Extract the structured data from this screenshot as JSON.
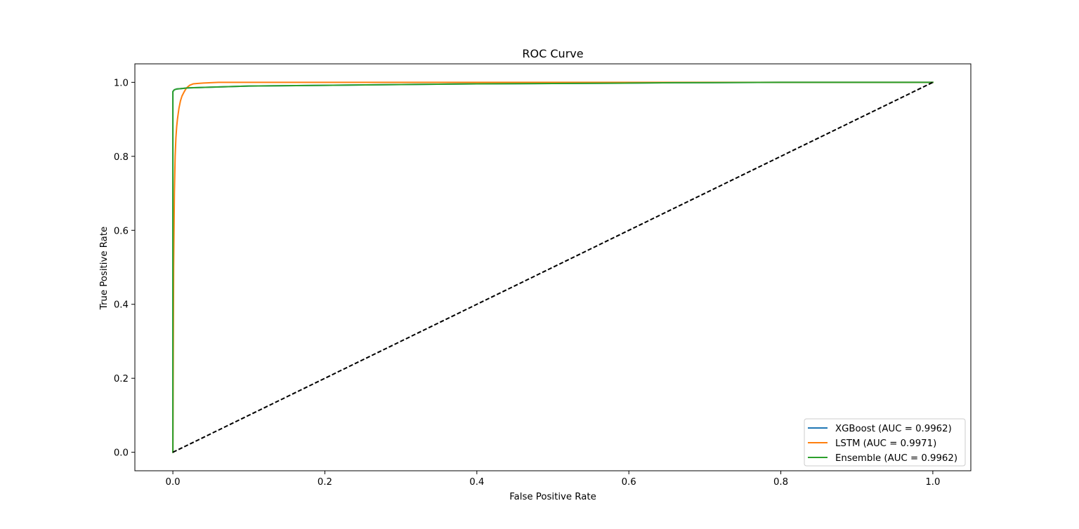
{
  "chart_data": {
    "type": "line",
    "title": "ROC Curve",
    "xlabel": "False Positive Rate",
    "ylabel": "True Positive Rate",
    "xlim": [
      -0.05,
      1.05
    ],
    "ylim": [
      -0.05,
      1.05
    ],
    "xticks": [
      0.0,
      0.2,
      0.4,
      0.6,
      0.8,
      1.0
    ],
    "xtick_labels": [
      "0.0",
      "0.2",
      "0.4",
      "0.6",
      "0.8",
      "1.0"
    ],
    "yticks": [
      0.0,
      0.2,
      0.4,
      0.6,
      0.8,
      1.0
    ],
    "ytick_labels": [
      "0.0",
      "0.2",
      "0.4",
      "0.6",
      "0.8",
      "1.0"
    ],
    "grid": false,
    "legend_position": "lower-right",
    "series": [
      {
        "name": "XGBoost (AUC = 0.9962)",
        "color": "#1f77b4",
        "x": [
          0.0,
          0.0,
          0.002,
          0.005,
          0.01,
          0.02,
          0.05,
          0.1,
          0.2,
          0.3,
          0.4,
          0.5,
          0.6,
          0.66,
          0.8,
          1.0
        ],
        "y": [
          0.0,
          0.975,
          0.98,
          0.982,
          0.983,
          0.985,
          0.987,
          0.99,
          0.992,
          0.994,
          0.996,
          0.997,
          0.998,
          0.999,
          1.0,
          1.0
        ]
      },
      {
        "name": "LSTM (AUC = 0.9971)",
        "color": "#ff7f0e",
        "x": [
          0.0,
          0.001,
          0.002,
          0.003,
          0.004,
          0.005,
          0.006,
          0.008,
          0.01,
          0.012,
          0.015,
          0.018,
          0.022,
          0.027,
          0.032,
          0.04,
          0.05,
          0.06,
          0.1,
          0.3,
          0.6,
          1.0
        ],
        "y": [
          0.0,
          0.5,
          0.7,
          0.8,
          0.85,
          0.88,
          0.9,
          0.93,
          0.95,
          0.963,
          0.975,
          0.985,
          0.992,
          0.996,
          0.997,
          0.998,
          0.999,
          1.0,
          1.0,
          1.0,
          1.0,
          1.0
        ]
      },
      {
        "name": "Ensemble (AUC = 0.9962)",
        "color": "#2ca02c",
        "x": [
          0.0,
          0.0,
          0.002,
          0.005,
          0.01,
          0.02,
          0.05,
          0.1,
          0.2,
          0.3,
          0.4,
          0.5,
          0.6,
          0.66,
          0.8,
          1.0
        ],
        "y": [
          0.0,
          0.975,
          0.98,
          0.982,
          0.983,
          0.985,
          0.987,
          0.99,
          0.992,
          0.994,
          0.996,
          0.997,
          0.998,
          0.999,
          1.0,
          1.0
        ]
      }
    ],
    "reference_line": {
      "color": "#000000",
      "style": "dashed",
      "x": [
        0.0,
        1.0
      ],
      "y": [
        0.0,
        1.0
      ]
    }
  }
}
